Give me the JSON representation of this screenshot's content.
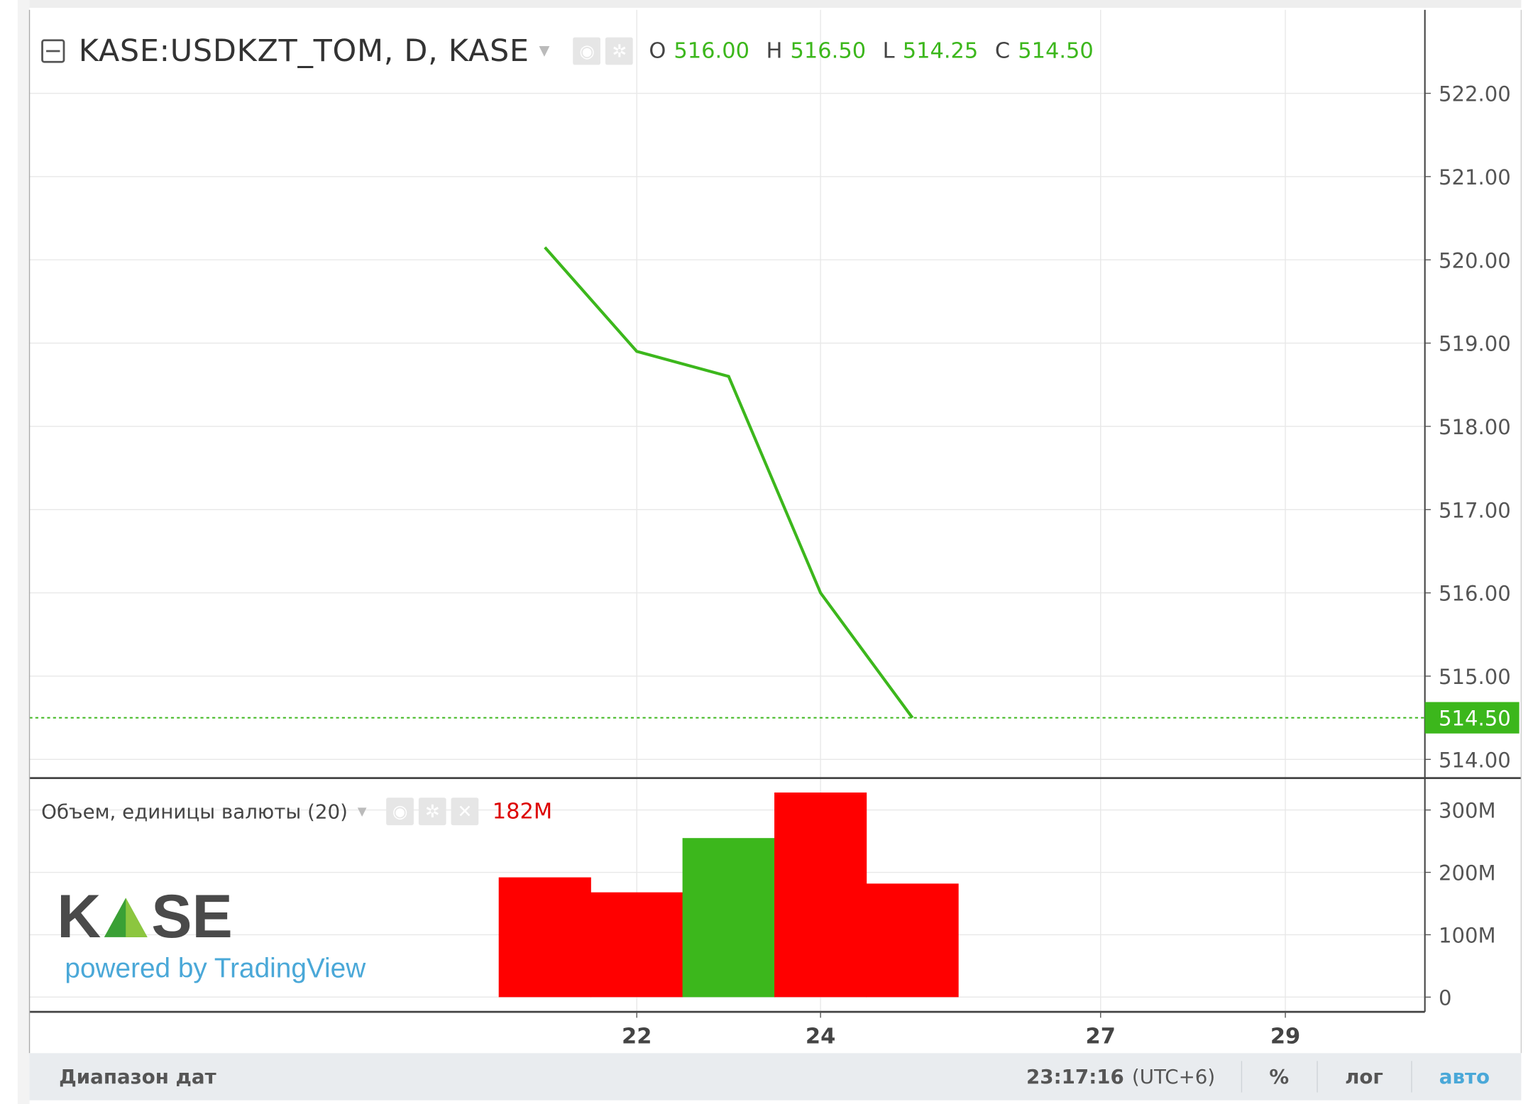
{
  "legend": {
    "symbol": "KASE:USDKZT_TOM, D, KASE",
    "ohlc": [
      {
        "key": "O",
        "value": "516.00"
      },
      {
        "key": "H",
        "value": "516.50"
      },
      {
        "key": "L",
        "value": "514.25"
      },
      {
        "key": "C",
        "value": "514.50"
      }
    ]
  },
  "volume_legend": {
    "label": "Объем, единицы валюты (20)",
    "value": "182M"
  },
  "logo": {
    "text": "KASE",
    "powered": "powered by TradingView"
  },
  "bottom_bar": {
    "date_range": "Диапазон дат",
    "time": "23:17:16",
    "tz": "(UTC+6)",
    "percent": "%",
    "log": "лог",
    "auto": "авто"
  },
  "colors": {
    "line": "#3cb71c",
    "up": "#3cb71c",
    "down": "#ff0000",
    "last_price_bg": "#3cb71c",
    "auto": "#4aa8d8"
  },
  "chart_data": [
    {
      "type": "line",
      "x": [
        "21",
        "22",
        "23",
        "24",
        "25"
      ],
      "y": [
        520.15,
        518.9,
        518.6,
        516.0,
        514.5
      ],
      "ylim": [
        513.8,
        522.9
      ],
      "yticks": [
        "514.00",
        "515.00",
        "516.00",
        "517.00",
        "518.00",
        "519.00",
        "520.00",
        "521.00",
        "522.00"
      ],
      "xticks": [
        "22",
        "24",
        "27",
        "29"
      ],
      "last_price": "514.50",
      "grid": true
    },
    {
      "type": "bar",
      "x": [
        "21",
        "22",
        "23",
        "24",
        "25"
      ],
      "values": [
        192,
        168,
        255,
        328,
        182
      ],
      "unit": "M",
      "colors": [
        "down",
        "down",
        "up",
        "down",
        "down"
      ],
      "yticks": [
        "0",
        "100M",
        "200M",
        "300M"
      ],
      "grid": true
    }
  ]
}
